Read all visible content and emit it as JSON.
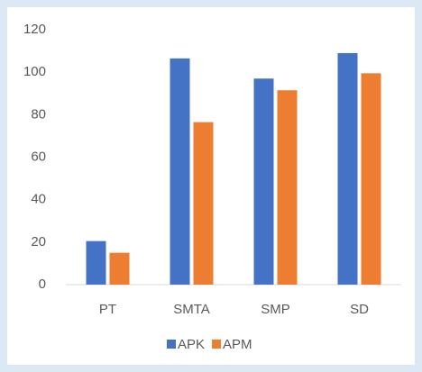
{
  "chart_data": {
    "type": "bar",
    "categories": [
      "PT",
      "SMTA",
      "SMP",
      "SD"
    ],
    "series": [
      {
        "name": "APK",
        "color": "#4472c4",
        "values": [
          20.5,
          106.5,
          97,
          109
        ]
      },
      {
        "name": "APM",
        "color": "#ed7d31",
        "values": [
          15,
          76.5,
          91.5,
          99.5
        ]
      }
    ],
    "ylim": [
      0,
      120
    ],
    "yticks": [
      0,
      20,
      40,
      60,
      80,
      100,
      120
    ],
    "grid": false,
    "legend": "bottom"
  }
}
